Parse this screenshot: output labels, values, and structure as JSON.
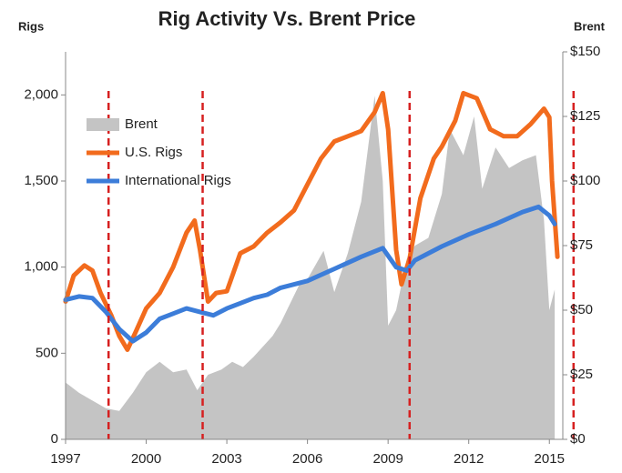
{
  "chart_data": {
    "type": "line",
    "title": "Rig Activity Vs. Brent Price",
    "ylabel": "Rigs",
    "y2label": "Brent",
    "xlim": [
      1997,
      2015.5
    ],
    "xticks": [
      1997,
      2000,
      2003,
      2006,
      2009,
      2012,
      2015
    ],
    "ylim": [
      0,
      2250
    ],
    "yticks": [
      0,
      500,
      {
        "value": 1000,
        "label": "1,000"
      },
      {
        "value": 1500,
        "label": "1,500"
      },
      {
        "value": 2000,
        "label": "2,000"
      }
    ],
    "y2lim": [
      0,
      150
    ],
    "y2ticks": [
      {
        "value": 0,
        "label": "$0"
      },
      {
        "value": 25,
        "label": "$25"
      },
      {
        "value": 50,
        "label": "$50"
      },
      {
        "value": 75,
        "label": "$75"
      },
      {
        "value": 100,
        "label": "$100"
      },
      {
        "value": 125,
        "label": "$125"
      },
      {
        "value": 150,
        "label": "$150"
      }
    ],
    "legend": "upper left",
    "vlines": [
      1998.6,
      2002.1,
      2009.8,
      2015.9
    ],
    "vline_color": "#d62020",
    "series": [
      {
        "name": "Brent",
        "color": "#c4c4c4",
        "kind": "area",
        "axis": "y2",
        "x": [
          1997,
          1997.5,
          1998.0,
          1998.5,
          1999.0,
          1999.5,
          2000.0,
          2000.5,
          2001.0,
          2001.5,
          2001.9,
          2002.3,
          2002.8,
          2003.2,
          2003.6,
          2004.0,
          2004.7,
          2005.0,
          2005.7,
          2006.0,
          2006.6,
          2007.0,
          2007.5,
          2008.0,
          2008.5,
          2008.8,
          2009.0,
          2009.3,
          2009.7,
          2010.0,
          2010.5,
          2011.0,
          2011.3,
          2011.8,
          2012.2,
          2012.5,
          2013.0,
          2013.5,
          2014.0,
          2014.5,
          2014.8,
          2015.0,
          2015.2
        ],
        "values": [
          22,
          18,
          15,
          12,
          11,
          18,
          26,
          30,
          26,
          27,
          19,
          25,
          27,
          30,
          28,
          32,
          40,
          45,
          60,
          62,
          73,
          57,
          72,
          92,
          133,
          100,
          44,
          50,
          70,
          75,
          78,
          95,
          120,
          110,
          125,
          97,
          113,
          105,
          108,
          110,
          85,
          50,
          58
        ]
      },
      {
        "name": "U.S. Rigs",
        "color": "#f26b1d",
        "kind": "line",
        "x": [
          1997.0,
          1997.3,
          1997.7,
          1998.0,
          1998.3,
          1998.7,
          1999.0,
          1999.3,
          1999.6,
          2000.0,
          2000.5,
          2001.0,
          2001.5,
          2001.8,
          2002.0,
          2002.3,
          2002.6,
          2003.0,
          2003.5,
          2004.0,
          2004.5,
          2005.0,
          2005.5,
          2006.0,
          2006.5,
          2007.0,
          2007.5,
          2008.0,
          2008.5,
          2008.8,
          2009.0,
          2009.3,
          2009.5,
          2009.8,
          2010.2,
          2010.7,
          2011.0,
          2011.5,
          2011.8,
          2012.3,
          2012.8,
          2013.3,
          2013.8,
          2014.3,
          2014.8,
          2015.0,
          2015.1,
          2015.3
        ],
        "values": [
          800,
          950,
          1010,
          980,
          850,
          720,
          600,
          520,
          620,
          760,
          850,
          1000,
          1200,
          1270,
          1100,
          800,
          850,
          860,
          1080,
          1120,
          1200,
          1260,
          1330,
          1480,
          1630,
          1730,
          1760,
          1790,
          1900,
          2010,
          1800,
          1100,
          900,
          1050,
          1400,
          1630,
          1700,
          1850,
          2010,
          1980,
          1800,
          1760,
          1760,
          1830,
          1920,
          1870,
          1500,
          1060
        ]
      },
      {
        "name": "International Rigs",
        "color": "#3c7dd9",
        "kind": "line",
        "x": [
          1997,
          1997.5,
          1998.0,
          1998.5,
          1999.0,
          1999.5,
          2000.0,
          2000.5,
          2001.0,
          2001.5,
          2002.0,
          2002.5,
          2003.0,
          2003.5,
          2004.0,
          2004.5,
          2005.0,
          2006.0,
          2007.0,
          2008.0,
          2008.8,
          2009.3,
          2009.7,
          2010.0,
          2011.0,
          2012.0,
          2013.0,
          2014.0,
          2014.6,
          2015.0,
          2015.2
        ],
        "values": [
          810,
          830,
          820,
          740,
          640,
          570,
          620,
          700,
          730,
          760,
          740,
          720,
          760,
          790,
          820,
          840,
          880,
          920,
          990,
          1060,
          1110,
          1000,
          980,
          1040,
          1120,
          1190,
          1250,
          1320,
          1350,
          1300,
          1250
        ]
      }
    ]
  }
}
